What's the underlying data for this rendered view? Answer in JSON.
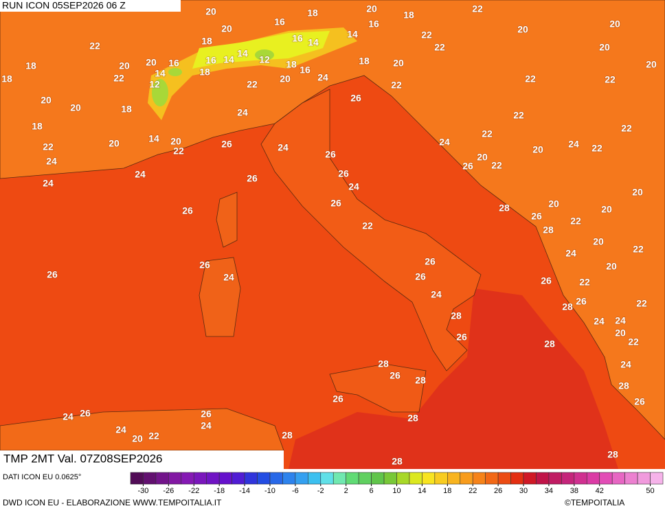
{
  "header": {
    "run": "RUN ICON 05SEP2026 06 Z"
  },
  "map": {
    "title": "TMP 2MT Val. 07Z08SEP2026",
    "labels": [
      "20",
      "18",
      "20",
      "16",
      "18",
      "22",
      "16",
      "20",
      "14",
      "22",
      "20",
      "20",
      "18",
      "16",
      "14",
      "22",
      "20",
      "22",
      "20",
      "16",
      "14",
      "16",
      "14",
      "12",
      "18",
      "16",
      "18",
      "20",
      "20",
      "18",
      "20",
      "22",
      "14",
      "18",
      "20",
      "24",
      "22",
      "22",
      "22",
      "18",
      "12",
      "22",
      "20",
      "20",
      "18",
      "26",
      "24",
      "22",
      "18",
      "22",
      "14",
      "20",
      "20",
      "26",
      "24",
      "22",
      "24",
      "24",
      "22",
      "20",
      "22",
      "22",
      "26",
      "20",
      "22",
      "26",
      "24",
      "24",
      "26",
      "26",
      "24",
      "24",
      "20",
      "26",
      "28",
      "20",
      "20",
      "26",
      "26",
      "28",
      "22",
      "22",
      "20",
      "22",
      "24",
      "26",
      "20",
      "26",
      "24",
      "26",
      "26",
      "26",
      "22",
      "24",
      "28",
      "26",
      "22",
      "28",
      "24",
      "24",
      "20",
      "26",
      "22",
      "28",
      "28",
      "24",
      "26",
      "28",
      "28",
      "26",
      "26",
      "28",
      "24",
      "26",
      "26",
      "24",
      "24",
      "20",
      "22",
      "28",
      "28",
      "28"
    ]
  },
  "legend": {
    "source": "DATI ICON EU 0.0625°",
    "ticks": [
      -30,
      -26,
      -22,
      -18,
      -14,
      -10,
      -6,
      -2,
      2,
      6,
      10,
      14,
      18,
      22,
      26,
      30,
      34,
      38,
      42,
      50
    ]
  },
  "footer": {
    "credit": "DWD ICON EU - ELABORAZIONE WWW.TEMPOITALIA.IT",
    "copyright": "©TEMPOITALIA"
  }
}
